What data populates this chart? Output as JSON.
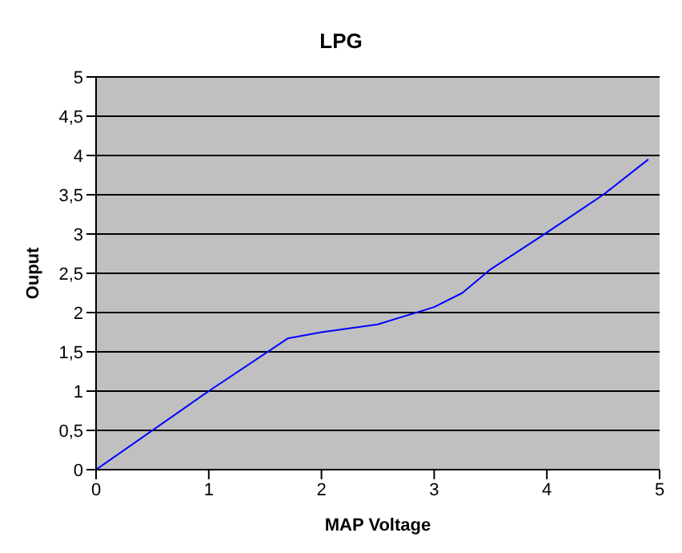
{
  "chart_data": {
    "type": "line",
    "title": "LPG",
    "xlabel": "MAP Voltage",
    "ylabel": "Ouput",
    "x": [
      0,
      1,
      1.7,
      2,
      2.5,
      3,
      3.25,
      3.5,
      4,
      4.5,
      4.9
    ],
    "series": [
      {
        "color": "#0000ff",
        "values": [
          0,
          1,
          1.67,
          1.75,
          1.85,
          2.07,
          2.25,
          2.55,
          3.02,
          3.5,
          3.95
        ]
      }
    ],
    "xlim": [
      0,
      5
    ],
    "xticks": [
      0,
      1,
      2,
      3,
      4,
      5
    ],
    "ylim": [
      0,
      5
    ],
    "yticks": [
      0,
      {
        "value": 0.5,
        "label": "0,5"
      },
      1,
      {
        "value": 1.5,
        "label": "1,5"
      },
      2,
      {
        "value": 2.5,
        "label": "2,5"
      },
      3,
      {
        "value": 3.5,
        "label": "3,5"
      },
      4,
      {
        "value": 4.5,
        "label": "4,5"
      },
      5
    ],
    "grid": "y",
    "marker": "none",
    "line_style": "solid",
    "legend": false
  }
}
